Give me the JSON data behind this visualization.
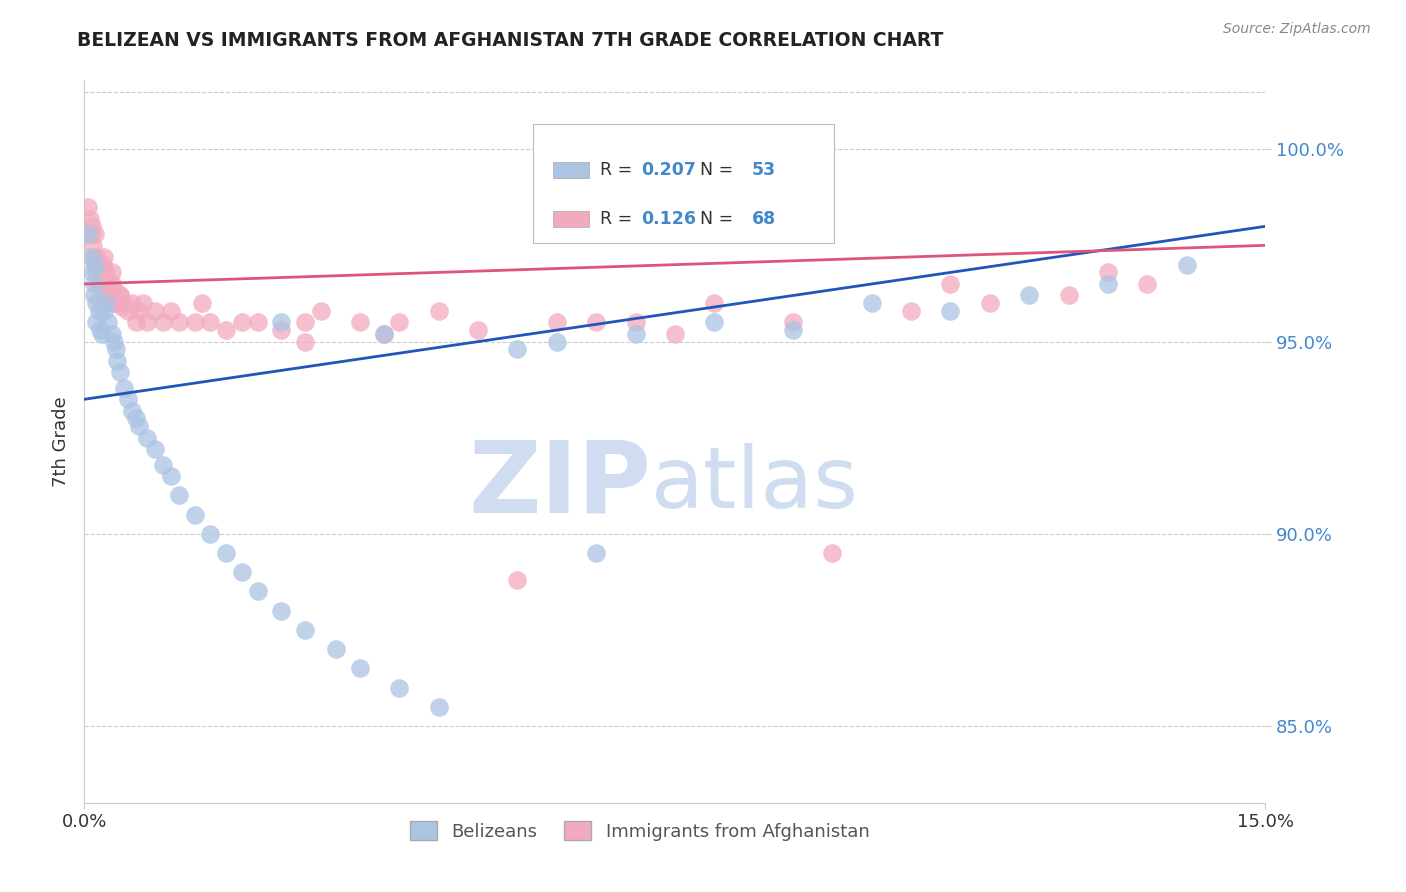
{
  "title": "BELIZEAN VS IMMIGRANTS FROM AFGHANISTAN 7TH GRADE CORRELATION CHART",
  "source_text": "Source: ZipAtlas.com",
  "ylabel": "7th Grade",
  "x_min": 0.0,
  "x_max": 15.0,
  "y_min": 83.0,
  "y_max": 101.8,
  "x_ticks": [
    0.0,
    15.0
  ],
  "x_tick_labels": [
    "0.0%",
    "15.0%"
  ],
  "y_ticks": [
    85.0,
    90.0,
    95.0,
    100.0
  ],
  "y_tick_labels": [
    "85.0%",
    "90.0%",
    "95.0%",
    "100.0%"
  ],
  "blue_color": "#aac4e2",
  "pink_color": "#f2aabe",
  "blue_line_color": "#2255bb",
  "pink_line_color": "#dd5577",
  "legend_R1": "0.207",
  "legend_N1": "53",
  "legend_R2": "0.126",
  "legend_N2": "68",
  "legend_label1": "Belizeans",
  "legend_label2": "Immigrants from Afghanistan",
  "blue_scatter_x": [
    0.05,
    0.08,
    0.1,
    0.12,
    0.12,
    0.14,
    0.15,
    0.15,
    0.18,
    0.2,
    0.22,
    0.25,
    0.28,
    0.3,
    0.35,
    0.38,
    0.4,
    0.42,
    0.45,
    0.5,
    0.55,
    0.6,
    0.65,
    0.7,
    0.8,
    0.9,
    1.0,
    1.1,
    1.2,
    1.4,
    1.6,
    1.8,
    2.0,
    2.2,
    2.5,
    2.8,
    3.2,
    3.5,
    4.0,
    4.5,
    5.5,
    6.0,
    7.0,
    8.0,
    9.0,
    10.0,
    11.0,
    12.0,
    13.0,
    14.0,
    2.5,
    3.8,
    6.5
  ],
  "blue_scatter_y": [
    97.8,
    97.2,
    96.8,
    96.5,
    96.2,
    97.0,
    96.0,
    95.5,
    95.8,
    95.3,
    95.2,
    95.8,
    96.0,
    95.5,
    95.2,
    95.0,
    94.8,
    94.5,
    94.2,
    93.8,
    93.5,
    93.2,
    93.0,
    92.8,
    92.5,
    92.2,
    91.8,
    91.5,
    91.0,
    90.5,
    90.0,
    89.5,
    89.0,
    88.5,
    88.0,
    87.5,
    87.0,
    86.5,
    86.0,
    85.5,
    94.8,
    95.0,
    95.2,
    95.5,
    95.3,
    96.0,
    95.8,
    96.2,
    96.5,
    97.0,
    95.5,
    95.2,
    89.5
  ],
  "pink_scatter_x": [
    0.05,
    0.07,
    0.08,
    0.1,
    0.11,
    0.12,
    0.13,
    0.14,
    0.15,
    0.16,
    0.17,
    0.18,
    0.2,
    0.22,
    0.24,
    0.26,
    0.28,
    0.3,
    0.32,
    0.35,
    0.38,
    0.4,
    0.42,
    0.45,
    0.48,
    0.5,
    0.55,
    0.6,
    0.65,
    0.7,
    0.75,
    0.8,
    0.9,
    1.0,
    1.1,
    1.2,
    1.4,
    1.6,
    1.8,
    2.0,
    2.2,
    2.5,
    2.8,
    3.0,
    3.5,
    4.0,
    5.0,
    6.0,
    7.0,
    8.0,
    9.0,
    10.5,
    11.5,
    12.5,
    13.5,
    0.25,
    0.35,
    0.45,
    1.5,
    2.8,
    3.8,
    5.5,
    7.5,
    9.5,
    11.0,
    13.0,
    4.5,
    6.5
  ],
  "pink_scatter_y": [
    98.5,
    98.2,
    97.8,
    98.0,
    97.5,
    97.2,
    97.8,
    97.0,
    96.8,
    97.2,
    96.5,
    97.0,
    96.8,
    96.5,
    97.0,
    96.2,
    96.8,
    96.5,
    96.2,
    96.5,
    96.0,
    96.3,
    96.0,
    96.2,
    95.9,
    96.0,
    95.8,
    96.0,
    95.5,
    95.8,
    96.0,
    95.5,
    95.8,
    95.5,
    95.8,
    95.5,
    95.5,
    95.5,
    95.3,
    95.5,
    95.5,
    95.3,
    95.5,
    95.8,
    95.5,
    95.5,
    95.3,
    95.5,
    95.5,
    96.0,
    95.5,
    95.8,
    96.0,
    96.2,
    96.5,
    97.2,
    96.8,
    96.2,
    96.0,
    95.0,
    95.2,
    88.8,
    95.2,
    89.5,
    96.5,
    96.8,
    95.8,
    95.5
  ]
}
